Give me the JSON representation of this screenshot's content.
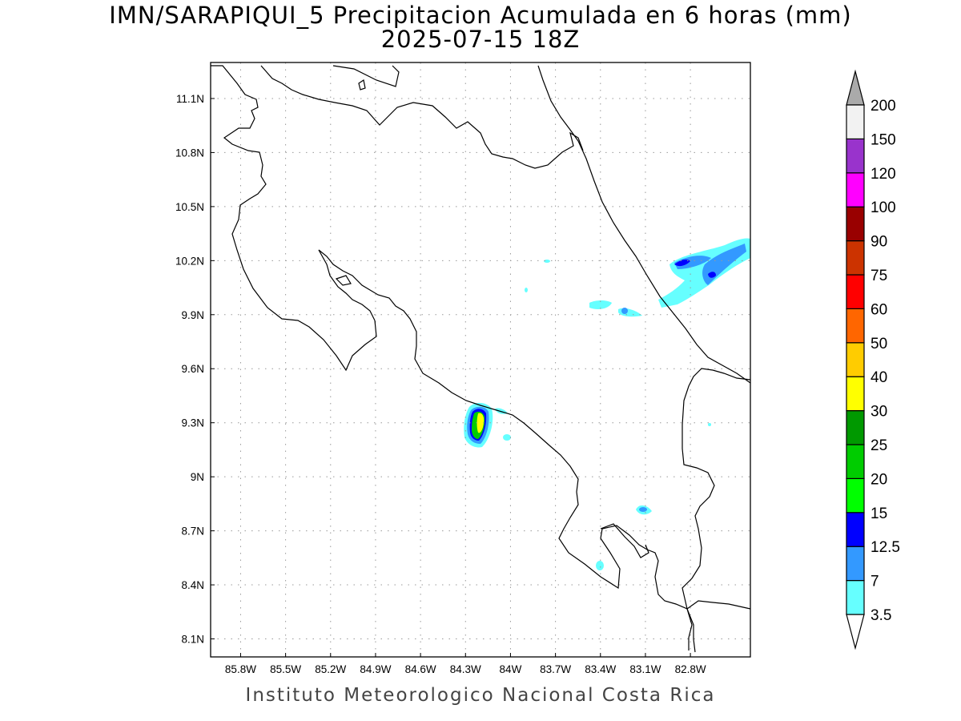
{
  "title": {
    "line1": "IMN/SARAPIQUI_5 Precipitacion Acumulada en 6 horas (mm)",
    "line2": "2025-07-15 18Z"
  },
  "footer": "Instituto Meteorologico Nacional Costa Rica",
  "map": {
    "lon_range": [
      -86.0,
      -82.4
    ],
    "lat_range": [
      8.0,
      11.3
    ],
    "lon_ticks": [
      {
        "value": -85.8,
        "label": "85.8W"
      },
      {
        "value": -85.5,
        "label": "85.5W"
      },
      {
        "value": -85.2,
        "label": "85.2W"
      },
      {
        "value": -84.9,
        "label": "84.9W"
      },
      {
        "value": -84.6,
        "label": "84.6W"
      },
      {
        "value": -84.3,
        "label": "84.3W"
      },
      {
        "value": -84.0,
        "label": "84W"
      },
      {
        "value": -83.7,
        "label": "83.7W"
      },
      {
        "value": -83.4,
        "label": "83.4W"
      },
      {
        "value": -83.1,
        "label": "83.1W"
      },
      {
        "value": -82.8,
        "label": "82.8W"
      }
    ],
    "lat_ticks": [
      {
        "value": 11.1,
        "label": "11.1N"
      },
      {
        "value": 10.8,
        "label": "10.8N"
      },
      {
        "value": 10.5,
        "label": "10.5N"
      },
      {
        "value": 10.2,
        "label": "10.2N"
      },
      {
        "value": 9.9,
        "label": "9.9N"
      },
      {
        "value": 9.6,
        "label": "9.6N"
      },
      {
        "value": 9.3,
        "label": "9.3N"
      },
      {
        "value": 9.0,
        "label": "9N"
      },
      {
        "value": 8.7,
        "label": "8.7N"
      },
      {
        "value": 8.4,
        "label": "8.4N"
      },
      {
        "value": 8.1,
        "label": "8.1N"
      }
    ],
    "grid": true
  },
  "colorbar": {
    "levels": [
      {
        "label": "3.5",
        "color": "#66ffff"
      },
      {
        "label": "7",
        "color": "#3399ff"
      },
      {
        "label": "12.5",
        "color": "#0000ff"
      },
      {
        "label": "15",
        "color": "#00ff00"
      },
      {
        "label": "20",
        "color": "#00cc00"
      },
      {
        "label": "25",
        "color": "#009900"
      },
      {
        "label": "30",
        "color": "#ffff00"
      },
      {
        "label": "40",
        "color": "#ffcc00"
      },
      {
        "label": "50",
        "color": "#ff6600"
      },
      {
        "label": "60",
        "color": "#ff0000"
      },
      {
        "label": "75",
        "color": "#cc3300"
      },
      {
        "label": "90",
        "color": "#990000"
      },
      {
        "label": "100",
        "color": "#ff00ff"
      },
      {
        "label": "120",
        "color": "#9933cc"
      },
      {
        "label": "150",
        "color": "#f2f2f2"
      },
      {
        "label": "200",
        "color": "#aaaaaa"
      }
    ],
    "below_color": "#ffffff"
  }
}
